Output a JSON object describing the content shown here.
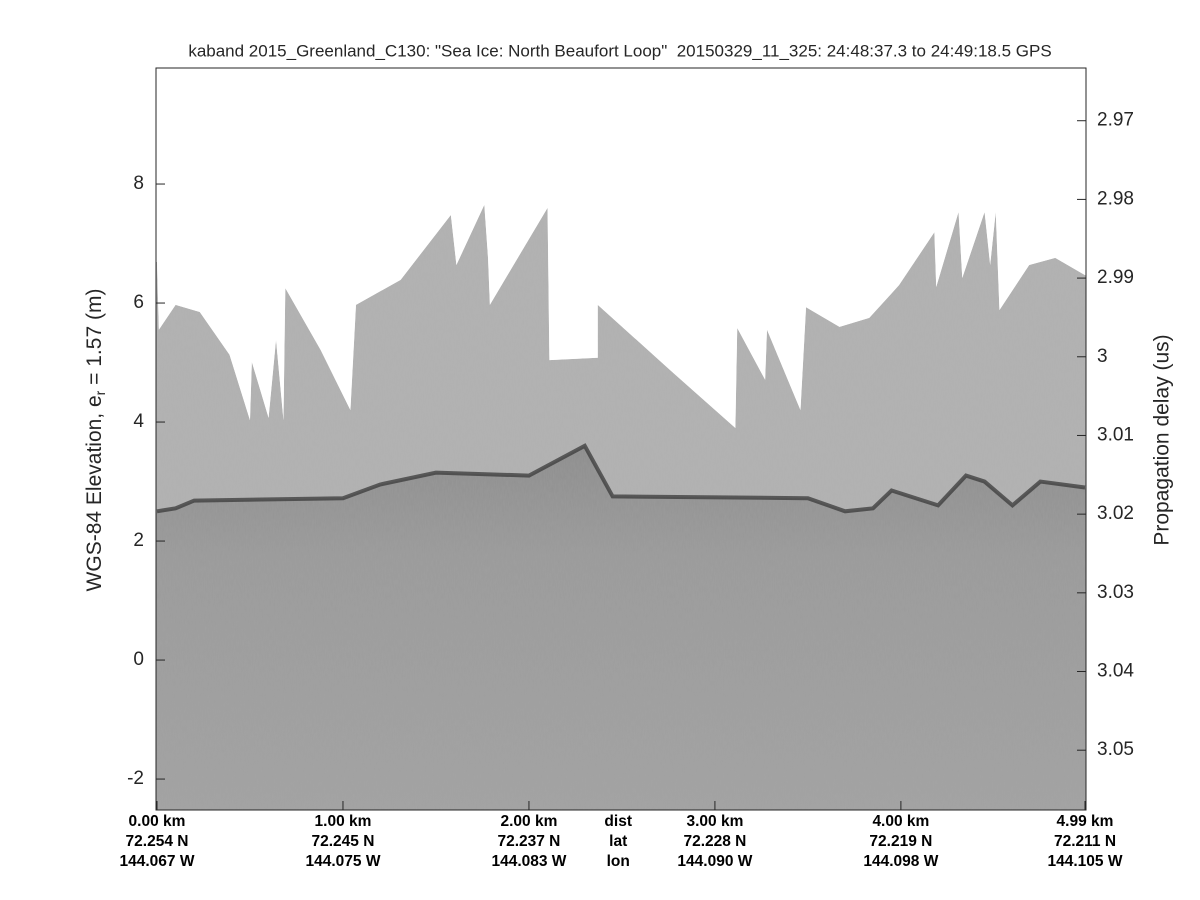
{
  "chart_data": {
    "type": "echogram",
    "title": "kaband 2015_Greenland_C130: \"Sea Ice: North Beaufort Loop\"  20150329_11_325: 24:48:37.3 to 24:49:18.5 GPS",
    "ylabel": {
      "text": "WGS-84 Elevation, e",
      "subscript": "r",
      "suffix": " = 1.57 (m)"
    },
    "y2label": "Propagation delay (us)",
    "xlim": [
      0,
      4.99
    ],
    "xticks": [
      {
        "value": 0,
        "label": "0.00 km"
      },
      {
        "value": 1,
        "label": "1.00 km"
      },
      {
        "value": 2,
        "label": "2.00 km"
      },
      {
        "value": 3,
        "label": "3.00 km"
      },
      {
        "value": 4,
        "label": "4.00 km"
      },
      {
        "value": 4.99,
        "label": "4.99 km"
      }
    ],
    "xtick_lat": [
      "72.254 N",
      "72.245 N",
      "72.237 N",
      "72.228 N",
      "72.219 N",
      "72.211 N"
    ],
    "xtick_lon": [
      "144.067 W",
      "144.075 W",
      "144.083 W",
      "144.090 W",
      "144.098 W",
      "144.105 W"
    ],
    "xtick_row_names": [
      "dist",
      "lat",
      "lon"
    ],
    "xtick_row_names_at": 2.48,
    "ylim": [
      -2.52,
      9.95
    ],
    "yticks": [
      -2,
      0,
      2,
      4,
      6,
      8
    ],
    "y2lim": [
      3.0576,
      2.9633
    ],
    "y2ticks": [
      2.97,
      2.98,
      2.99,
      3,
      3.01,
      3.02,
      3.03,
      3.04,
      3.05
    ],
    "echogram": {
      "x": [
        0,
        0.01,
        0.1,
        0.23,
        0.39,
        0.5,
        0.51,
        0.6,
        0.64,
        0.68,
        0.69,
        0.88,
        1.04,
        1.07,
        1.31,
        1.58,
        1.61,
        1.76,
        1.78,
        1.79,
        2.1,
        2.11,
        2.37,
        2.37,
        2.76,
        3.11,
        3.12,
        3.27,
        3.28,
        3.46,
        3.49,
        3.67,
        3.83,
        3.99,
        4.18,
        4.19,
        4.31,
        4.33,
        4.45,
        4.48,
        4.51,
        4.53,
        4.69,
        4.83,
        4.99
      ],
      "top": [
        6.69,
        5.55,
        5.97,
        5.85,
        5.13,
        4.03,
        5.01,
        4.07,
        5.38,
        4.03,
        6.25,
        5.21,
        4.2,
        5.97,
        6.39,
        7.48,
        6.64,
        7.65,
        6.76,
        5.97,
        7.6,
        5.04,
        5.08,
        5.97,
        4.87,
        3.9,
        5.58,
        4.71,
        5.55,
        4.2,
        5.93,
        5.6,
        5.75,
        6.3,
        7.19,
        6.27,
        7.53,
        6.42,
        7.53,
        6.64,
        7.53,
        5.88,
        6.64,
        6.76,
        6.47
      ],
      "surface_x": [
        0,
        0.1,
        0.2,
        1.0,
        1.2,
        1.5,
        2.0,
        2.3,
        2.45,
        3.5,
        3.7,
        3.85,
        3.95,
        4.2,
        4.35,
        4.45,
        4.6,
        4.75,
        4.99
      ],
      "surface": [
        2.5,
        2.55,
        2.68,
        2.72,
        2.95,
        3.15,
        3.1,
        3.6,
        2.75,
        2.72,
        2.5,
        2.55,
        2.85,
        2.6,
        3.1,
        3.0,
        2.6,
        3.0,
        2.9
      ]
    }
  }
}
